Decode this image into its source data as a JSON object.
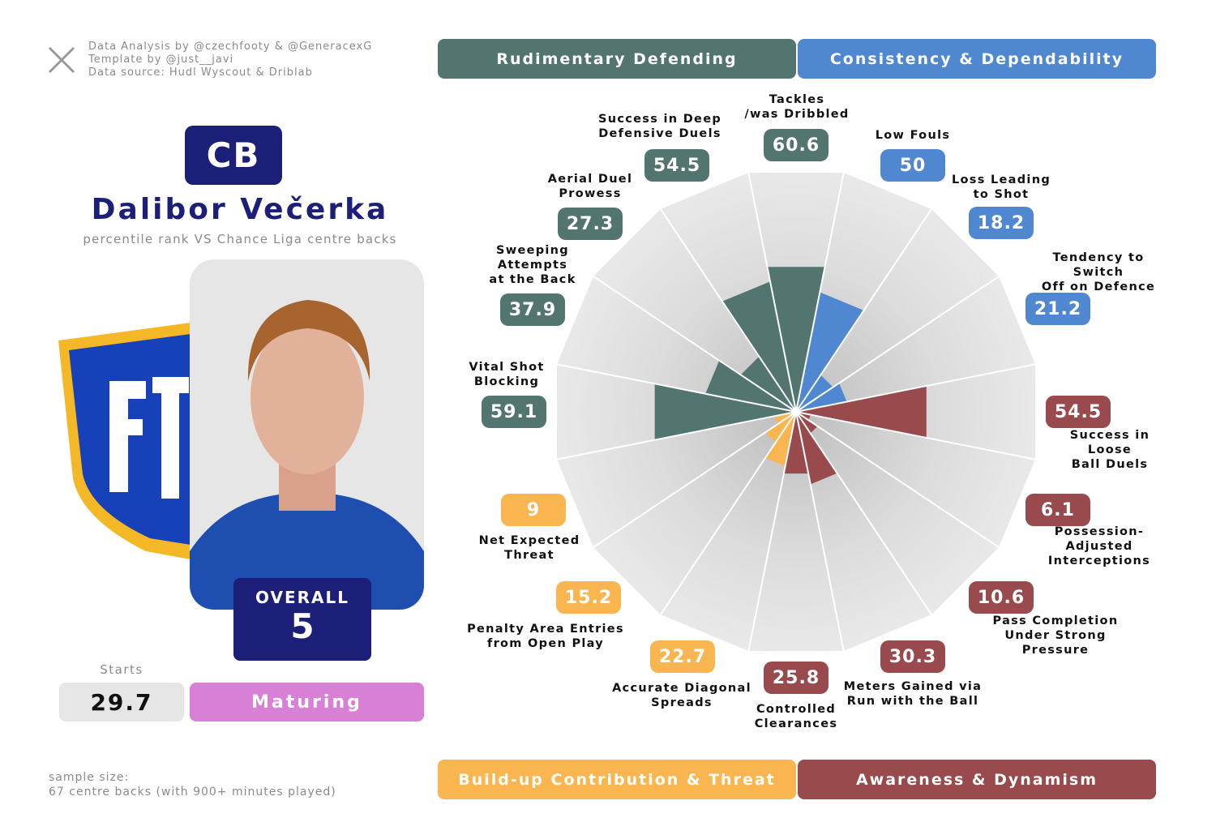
{
  "credits": [
    "Data Analysis by @czechfooty & @GeneracexG",
    "Template by @just__javi",
    "Data source: Hudl Wyscout & Driblab"
  ],
  "position": "CB",
  "player": "Dalibor Večerka",
  "subtitle": "percentile rank VS Chance Liga centre backs",
  "overall": {
    "label": "OVERALL",
    "value": 5
  },
  "starts": {
    "label": "Starts",
    "value": 29.7
  },
  "tag": "Maturing",
  "sample_size": [
    "sample size:",
    "67 centre backs (with 900+ minutes played)"
  ],
  "chart_data": {
    "type": "polar-bar",
    "categories": [
      "Tackles\n/was Dribbled",
      "Low Fouls",
      "Loss Leading\nto Shot",
      "Tendency to Switch\nOff on Defence",
      "Success in Loose\nBall Duels",
      "Possession-Adjusted\nInterceptions",
      "Pass Completion\nUnder Strong Pressure",
      "Meters Gained via\nRun with the Ball",
      "Controlled\nClearances",
      "Accurate Diagonal\nSpreads",
      "Penalty Area Entries\nfrom Open Play",
      "Net Expected\nThreat",
      "Vital Shot\nBlocking",
      "Sweeping\nAttempts\nat the Back",
      "Aerial Duel\nProwess",
      "Success in Deep\nDefensive Duels"
    ],
    "series": [
      {
        "name": "Rudimentary Defending",
        "color": "#537570",
        "values": [
          60.6,
          null,
          null,
          null,
          null,
          null,
          null,
          null,
          null,
          null,
          null,
          null,
          59.1,
          37.9,
          27.3,
          54.5
        ]
      },
      {
        "name": "Consistency & Dependability",
        "color": "#4f87d0",
        "values": [
          null,
          50,
          18.2,
          21.2,
          null,
          null,
          null,
          null,
          null,
          null,
          null,
          null,
          null,
          null,
          null,
          null
        ]
      },
      {
        "name": "Build-up Contribution & Threat",
        "color": "#f8b550",
        "values": [
          null,
          null,
          null,
          null,
          null,
          null,
          null,
          null,
          null,
          22.7,
          15.2,
          9,
          null,
          null,
          null,
          null
        ]
      },
      {
        "name": "Awareness & Dynamism",
        "color": "#994a4c",
        "values": [
          null,
          null,
          null,
          null,
          54.5,
          6.1,
          10.6,
          30.3,
          25.8,
          null,
          null,
          null,
          null,
          null,
          null,
          null
        ]
      }
    ],
    "ylim": [
      0,
      100
    ]
  }
}
